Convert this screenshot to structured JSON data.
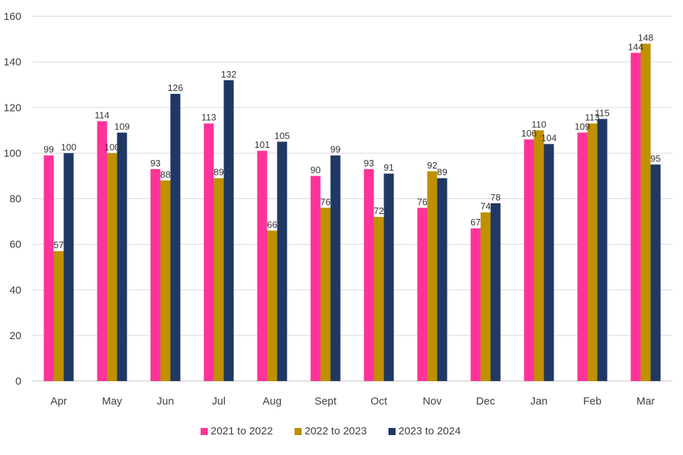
{
  "chart_data": {
    "type": "bar",
    "title": "",
    "xlabel": "",
    "ylabel": "",
    "ylim": [
      0,
      160
    ],
    "yticks": [
      0,
      20,
      40,
      60,
      80,
      100,
      120,
      140,
      160
    ],
    "grid": true,
    "legend_position": "bottom-center",
    "categories": [
      "Apr",
      "May",
      "Jun",
      "Jul",
      "Aug",
      "Sept",
      "Oct",
      "Nov",
      "Dec",
      "Jan",
      "Feb",
      "Mar"
    ],
    "series": [
      {
        "name": "2021 to 2022",
        "color": "#ff3399",
        "values": [
          99,
          114,
          93,
          113,
          101,
          90,
          93,
          76,
          67,
          106,
          109,
          144
        ]
      },
      {
        "name": "2022 to 2023",
        "color": "#bf9000",
        "values": [
          57,
          100,
          88,
          89,
          66,
          76,
          72,
          92,
          74,
          110,
          113,
          148
        ]
      },
      {
        "name": "2023 to 2024",
        "color": "#1f3864",
        "values": [
          100,
          109,
          126,
          132,
          105,
          99,
          91,
          89,
          78,
          104,
          115,
          95
        ]
      }
    ]
  }
}
